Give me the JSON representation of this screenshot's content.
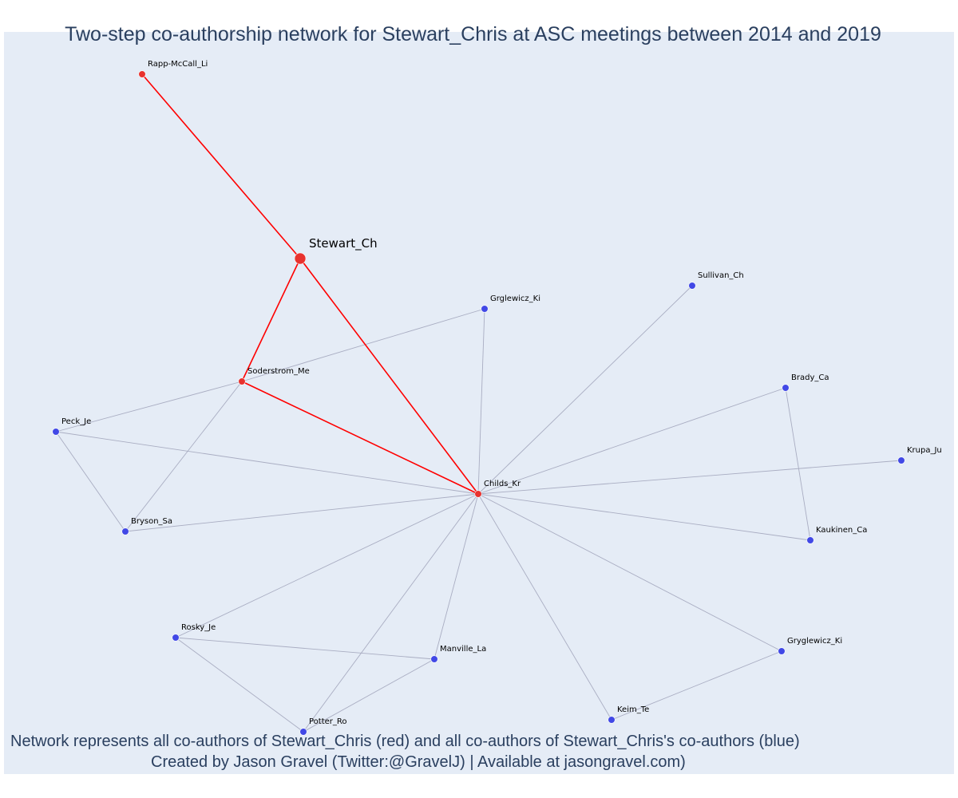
{
  "title": "Two-step co-authorship network for Stewart_Chris at ASC meetings between 2014 and 2019",
  "caption": {
    "line1": "Network represents all co-authors of Stewart_Chris (red) and all co-authors of Stewart_Chris's co-authors (blue)",
    "line2": "Created by Jason Gravel (Twitter:@GravelJ) | Available at jasongravel.com)"
  },
  "colors": {
    "background": "#e5ecf6",
    "first_degree": "#e8322e",
    "second_degree": "#4148e6",
    "first_degree_edge": "#ff0000",
    "second_degree_edge": "#a9adc2",
    "text": "#2a3f5f"
  },
  "chart_data": {
    "type": "network",
    "focal_node": "Stewart_Ch",
    "nodes": [
      {
        "id": "Stewart_Ch",
        "group": "focal"
      },
      {
        "id": "Rapp-McCall_Li",
        "group": "coauthor"
      },
      {
        "id": "Soderstrom_Me",
        "group": "coauthor"
      },
      {
        "id": "Childs_Kr",
        "group": "coauthor"
      },
      {
        "id": "Grglewicz_Ki",
        "group": "second"
      },
      {
        "id": "Sullivan_Ch",
        "group": "second"
      },
      {
        "id": "Brady_Ca",
        "group": "second"
      },
      {
        "id": "Krupa_Ju",
        "group": "second"
      },
      {
        "id": "Kaukinen_Ca",
        "group": "second"
      },
      {
        "id": "Peck_Je",
        "group": "second"
      },
      {
        "id": "Bryson_Sa",
        "group": "second"
      },
      {
        "id": "Rosky_Je",
        "group": "second"
      },
      {
        "id": "Manville_La",
        "group": "second"
      },
      {
        "id": "Potter_Ro",
        "group": "second"
      },
      {
        "id": "Keim_Te",
        "group": "second"
      },
      {
        "id": "Gryglewicz_Ki",
        "group": "second"
      }
    ],
    "edges": [
      {
        "source": "Stewart_Ch",
        "target": "Rapp-McCall_Li",
        "degree": 1
      },
      {
        "source": "Stewart_Ch",
        "target": "Soderstrom_Me",
        "degree": 1
      },
      {
        "source": "Stewart_Ch",
        "target": "Childs_Kr",
        "degree": 1
      },
      {
        "source": "Soderstrom_Me",
        "target": "Childs_Kr",
        "degree": 1
      },
      {
        "source": "Soderstrom_Me",
        "target": "Grglewicz_Ki",
        "degree": 2
      },
      {
        "source": "Soderstrom_Me",
        "target": "Peck_Je",
        "degree": 2
      },
      {
        "source": "Soderstrom_Me",
        "target": "Bryson_Sa",
        "degree": 2
      },
      {
        "source": "Peck_Je",
        "target": "Bryson_Sa",
        "degree": 2
      },
      {
        "source": "Peck_Je",
        "target": "Childs_Kr",
        "degree": 2
      },
      {
        "source": "Bryson_Sa",
        "target": "Childs_Kr",
        "degree": 2
      },
      {
        "source": "Grglewicz_Ki",
        "target": "Childs_Kr",
        "degree": 2
      },
      {
        "source": "Sullivan_Ch",
        "target": "Childs_Kr",
        "degree": 2
      },
      {
        "source": "Brady_Ca",
        "target": "Childs_Kr",
        "degree": 2
      },
      {
        "source": "Brady_Ca",
        "target": "Kaukinen_Ca",
        "degree": 2
      },
      {
        "source": "Krupa_Ju",
        "target": "Childs_Kr",
        "degree": 2
      },
      {
        "source": "Kaukinen_Ca",
        "target": "Childs_Kr",
        "degree": 2
      },
      {
        "source": "Rosky_Je",
        "target": "Childs_Kr",
        "degree": 2
      },
      {
        "source": "Rosky_Je",
        "target": "Manville_La",
        "degree": 2
      },
      {
        "source": "Rosky_Je",
        "target": "Potter_Ro",
        "degree": 2
      },
      {
        "source": "Manville_La",
        "target": "Childs_Kr",
        "degree": 2
      },
      {
        "source": "Manville_La",
        "target": "Potter_Ro",
        "degree": 2
      },
      {
        "source": "Potter_Ro",
        "target": "Childs_Kr",
        "degree": 2
      },
      {
        "source": "Keim_Te",
        "target": "Childs_Kr",
        "degree": 2
      },
      {
        "source": "Keim_Te",
        "target": "Gryglewicz_Ki",
        "degree": 2
      },
      {
        "source": "Gryglewicz_Ki",
        "target": "Childs_Kr",
        "degree": 2
      }
    ]
  }
}
